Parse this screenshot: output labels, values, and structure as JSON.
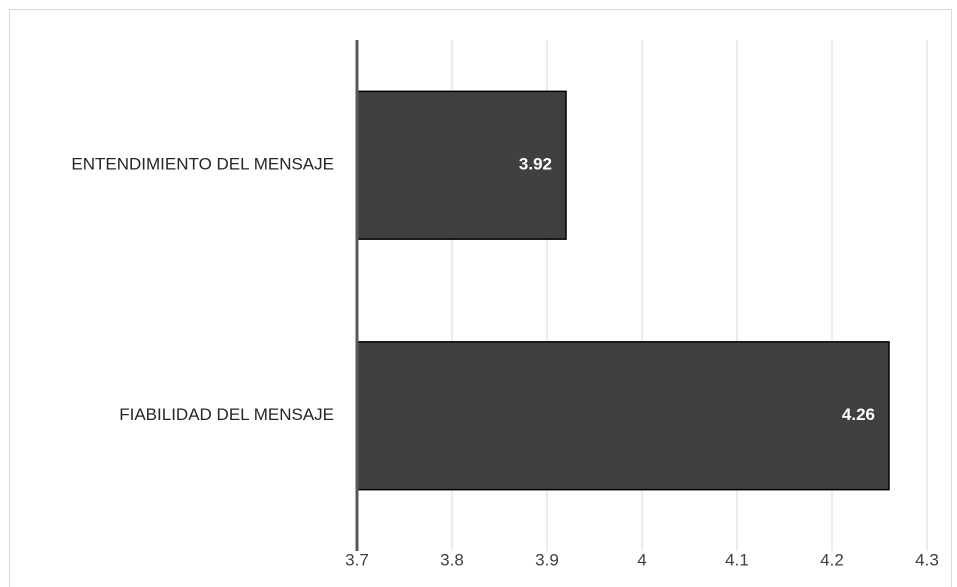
{
  "chart_data": {
    "type": "bar",
    "orientation": "horizontal",
    "categories": [
      "ENTENDIMIENTO DEL MENSAJE",
      "FIABILIDAD DEL MENSAJE"
    ],
    "values": [
      3.92,
      4.26
    ],
    "data_labels": [
      "3.92",
      "4.26"
    ],
    "xlim": [
      3.7,
      4.3
    ],
    "x_ticks": [
      3.7,
      3.8,
      3.9,
      4.0,
      4.1,
      4.2,
      4.3
    ],
    "x_tick_labels": [
      "3.7",
      "3.8",
      "3.9",
      "4",
      "4.1",
      "4.2",
      "4.3"
    ],
    "title": "",
    "xlabel": "",
    "ylabel": "",
    "grid": "vertical",
    "legend": "none",
    "colors": {
      "bar_fill": "#404040",
      "bar_stroke": "#000000",
      "grid": "#d9d9d9",
      "axis": "#595959"
    }
  }
}
